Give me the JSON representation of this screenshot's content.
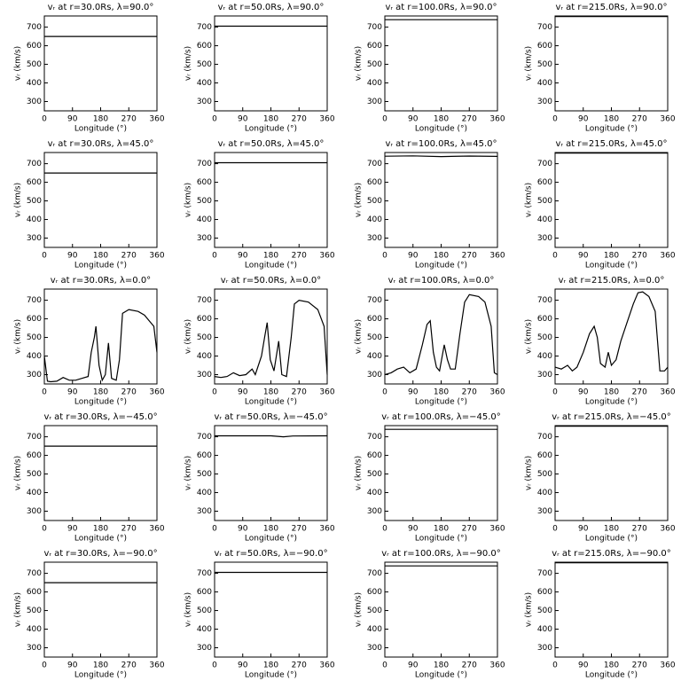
{
  "chart_data": [
    {
      "type": "line",
      "title": "vᵣ at r=30.0Rs, λ=90.0°",
      "xlabel": "Longitude (°)",
      "ylabel": "vᵣ (km/s)",
      "x": [
        0,
        360
      ],
      "values": [
        650,
        650
      ],
      "color": "#000000",
      "xlim": [
        0,
        360
      ],
      "ylim": [
        250,
        760
      ],
      "xticks": [
        0,
        90,
        180,
        270,
        360
      ],
      "yticks": [
        300,
        400,
        500,
        600,
        700
      ]
    },
    {
      "type": "line",
      "title": "vᵣ at r=50.0Rs, λ=90.0°",
      "xlabel": "Longitude (°)",
      "ylabel": "vᵣ (km/s)",
      "x": [
        0,
        360
      ],
      "values": [
        705,
        705
      ],
      "color": "#000000",
      "xlim": [
        0,
        360
      ],
      "ylim": [
        250,
        760
      ],
      "xticks": [
        0,
        90,
        180,
        270,
        360
      ],
      "yticks": [
        300,
        400,
        500,
        600,
        700
      ]
    },
    {
      "type": "line",
      "title": "vᵣ at r=100.0Rs, λ=90.0°",
      "xlabel": "Longitude (°)",
      "ylabel": "vᵣ (km/s)",
      "x": [
        0,
        360
      ],
      "values": [
        740,
        740
      ],
      "color": "#000000",
      "xlim": [
        0,
        360
      ],
      "ylim": [
        250,
        760
      ],
      "xticks": [
        0,
        90,
        180,
        270,
        360
      ],
      "yticks": [
        300,
        400,
        500,
        600,
        700
      ]
    },
    {
      "type": "line",
      "title": "vᵣ at r=215.0Rs, λ=90.0°",
      "xlabel": "Longitude (°)",
      "ylabel": "vᵣ (km/s)",
      "x": [
        0,
        360
      ],
      "values": [
        757,
        757
      ],
      "color": "#000000",
      "xlim": [
        0,
        360
      ],
      "ylim": [
        250,
        760
      ],
      "xticks": [
        0,
        90,
        180,
        270,
        360
      ],
      "yticks": [
        300,
        400,
        500,
        600,
        700
      ]
    },
    {
      "type": "line",
      "title": "vᵣ at r=30.0Rs, λ=45.0°",
      "xlabel": "Longitude (°)",
      "ylabel": "vᵣ (km/s)",
      "x": [
        0,
        360
      ],
      "values": [
        650,
        650
      ],
      "color": "#000000",
      "xlim": [
        0,
        360
      ],
      "ylim": [
        250,
        760
      ],
      "xticks": [
        0,
        90,
        180,
        270,
        360
      ],
      "yticks": [
        300,
        400,
        500,
        600,
        700
      ]
    },
    {
      "type": "line",
      "title": "vᵣ at r=50.0Rs, λ=45.0°",
      "xlabel": "Longitude (°)",
      "ylabel": "vᵣ (km/s)",
      "x": [
        0,
        360
      ],
      "values": [
        705,
        705
      ],
      "color": "#000000",
      "xlim": [
        0,
        360
      ],
      "ylim": [
        250,
        760
      ],
      "xticks": [
        0,
        90,
        180,
        270,
        360
      ],
      "yticks": [
        300,
        400,
        500,
        600,
        700
      ]
    },
    {
      "type": "line",
      "title": "vᵣ at r=100.0Rs, λ=45.0°",
      "xlabel": "Longitude (°)",
      "ylabel": "vᵣ (km/s)",
      "x": [
        0,
        90,
        180,
        270,
        360
      ],
      "values": [
        740,
        742,
        738,
        741,
        739
      ],
      "color": "#000000",
      "xlim": [
        0,
        360
      ],
      "ylim": [
        250,
        760
      ],
      "xticks": [
        0,
        90,
        180,
        270,
        360
      ],
      "yticks": [
        300,
        400,
        500,
        600,
        700
      ]
    },
    {
      "type": "line",
      "title": "vᵣ at r=215.0Rs, λ=45.0°",
      "xlabel": "Longitude (°)",
      "ylabel": "vᵣ (km/s)",
      "x": [
        0,
        360
      ],
      "values": [
        757,
        757
      ],
      "color": "#000000",
      "xlim": [
        0,
        360
      ],
      "ylim": [
        250,
        760
      ],
      "xticks": [
        0,
        90,
        180,
        270,
        360
      ],
      "yticks": [
        300,
        400,
        500,
        600,
        700
      ]
    },
    {
      "type": "line",
      "title": "vᵣ at r=30.0Rs, λ=0.0°",
      "xlabel": "Longitude (°)",
      "ylabel": "vᵣ (km/s)",
      "x": [
        0,
        10,
        20,
        40,
        60,
        80,
        100,
        120,
        140,
        150,
        160,
        165,
        175,
        185,
        195,
        205,
        215,
        230,
        240,
        250,
        270,
        300,
        320,
        340,
        350,
        360
      ],
      "values": [
        400,
        265,
        262,
        265,
        285,
        270,
        270,
        280,
        290,
        420,
        500,
        560,
        350,
        270,
        300,
        470,
        280,
        270,
        380,
        630,
        650,
        640,
        620,
        580,
        560,
        420
      ],
      "color": "#000000",
      "xlim": [
        0,
        360
      ],
      "ylim": [
        250,
        760
      ],
      "xticks": [
        0,
        90,
        180,
        270,
        360
      ],
      "yticks": [
        300,
        400,
        500,
        600,
        700
      ]
    },
    {
      "type": "line",
      "title": "vᵣ at r=50.0Rs, λ=0.0°",
      "xlabel": "Longitude (°)",
      "ylabel": "vᵣ (km/s)",
      "x": [
        0,
        20,
        40,
        60,
        80,
        100,
        120,
        130,
        150,
        160,
        168,
        178,
        190,
        205,
        215,
        230,
        245,
        255,
        270,
        300,
        330,
        350,
        360
      ],
      "values": [
        290,
        285,
        290,
        310,
        295,
        300,
        330,
        300,
        400,
        500,
        580,
        380,
        320,
        480,
        300,
        290,
        500,
        680,
        700,
        690,
        650,
        560,
        300
      ],
      "color": "#000000",
      "xlim": [
        0,
        360
      ],
      "ylim": [
        250,
        760
      ],
      "xticks": [
        0,
        90,
        180,
        270,
        360
      ],
      "yticks": [
        300,
        400,
        500,
        600,
        700
      ]
    },
    {
      "type": "line",
      "title": "vᵣ at r=100.0Rs, λ=0.0°",
      "xlabel": "Longitude (°)",
      "ylabel": "vᵣ (km/s)",
      "x": [
        0,
        20,
        40,
        60,
        80,
        100,
        120,
        135,
        145,
        155,
        165,
        175,
        190,
        200,
        210,
        225,
        240,
        255,
        270,
        300,
        320,
        340,
        350,
        360
      ],
      "values": [
        300,
        310,
        330,
        340,
        310,
        330,
        460,
        570,
        590,
        420,
        340,
        320,
        460,
        380,
        330,
        330,
        520,
        690,
        730,
        720,
        690,
        560,
        310,
        300
      ],
      "color": "#000000",
      "xlim": [
        0,
        360
      ],
      "ylim": [
        250,
        760
      ],
      "xticks": [
        0,
        90,
        180,
        270,
        360
      ],
      "yticks": [
        300,
        400,
        500,
        600,
        700
      ]
    },
    {
      "type": "line",
      "title": "vᵣ at r=215.0Rs, λ=0.0°",
      "xlabel": "Longitude (°)",
      "ylabel": "vᵣ (km/s)",
      "x": [
        0,
        20,
        40,
        55,
        70,
        90,
        110,
        125,
        135,
        145,
        160,
        170,
        180,
        195,
        210,
        230,
        250,
        265,
        280,
        300,
        320,
        335,
        350,
        360
      ],
      "values": [
        340,
        330,
        350,
        320,
        340,
        420,
        520,
        560,
        500,
        360,
        340,
        420,
        350,
        380,
        480,
        580,
        680,
        740,
        745,
        720,
        640,
        320,
        320,
        340
      ],
      "color": "#000000",
      "xlim": [
        0,
        360
      ],
      "ylim": [
        250,
        760
      ],
      "xticks": [
        0,
        90,
        180,
        270,
        360
      ],
      "yticks": [
        300,
        400,
        500,
        600,
        700
      ]
    },
    {
      "type": "line",
      "title": "vᵣ at r=30.0Rs, λ=−45.0°",
      "xlabel": "Longitude (°)",
      "ylabel": "vᵣ (km/s)",
      "x": [
        0,
        360
      ],
      "values": [
        650,
        650
      ],
      "color": "#000000",
      "xlim": [
        0,
        360
      ],
      "ylim": [
        250,
        760
      ],
      "xticks": [
        0,
        90,
        180,
        270,
        360
      ],
      "yticks": [
        300,
        400,
        500,
        600,
        700
      ]
    },
    {
      "type": "line",
      "title": "vᵣ at r=50.0Rs, λ=−45.0°",
      "xlabel": "Longitude (°)",
      "ylabel": "vᵣ (km/s)",
      "x": [
        0,
        180,
        220,
        250,
        360
      ],
      "values": [
        705,
        705,
        700,
        704,
        705
      ],
      "color": "#000000",
      "xlim": [
        0,
        360
      ],
      "ylim": [
        250,
        760
      ],
      "xticks": [
        0,
        90,
        180,
        270,
        360
      ],
      "yticks": [
        300,
        400,
        500,
        600,
        700
      ]
    },
    {
      "type": "line",
      "title": "vᵣ at r=100.0Rs, λ=−45.0°",
      "xlabel": "Longitude (°)",
      "ylabel": "vᵣ (km/s)",
      "x": [
        0,
        360
      ],
      "values": [
        740,
        740
      ],
      "color": "#000000",
      "xlim": [
        0,
        360
      ],
      "ylim": [
        250,
        760
      ],
      "xticks": [
        0,
        90,
        180,
        270,
        360
      ],
      "yticks": [
        300,
        400,
        500,
        600,
        700
      ]
    },
    {
      "type": "line",
      "title": "vᵣ at r=215.0Rs, λ=−45.0°",
      "xlabel": "Longitude (°)",
      "ylabel": "vᵣ (km/s)",
      "x": [
        0,
        360
      ],
      "values": [
        757,
        757
      ],
      "color": "#000000",
      "xlim": [
        0,
        360
      ],
      "ylim": [
        250,
        760
      ],
      "xticks": [
        0,
        90,
        180,
        270,
        360
      ],
      "yticks": [
        300,
        400,
        500,
        600,
        700
      ]
    },
    {
      "type": "line",
      "title": "vᵣ at r=30.0Rs, λ=−90.0°",
      "xlabel": "Longitude (°)",
      "ylabel": "vᵣ (km/s)",
      "x": [
        0,
        360
      ],
      "values": [
        650,
        650
      ],
      "color": "#000000",
      "xlim": [
        0,
        360
      ],
      "ylim": [
        250,
        760
      ],
      "xticks": [
        0,
        90,
        180,
        270,
        360
      ],
      "yticks": [
        300,
        400,
        500,
        600,
        700
      ]
    },
    {
      "type": "line",
      "title": "vᵣ at r=50.0Rs, λ=−90.0°",
      "xlabel": "Longitude (°)",
      "ylabel": "vᵣ (km/s)",
      "x": [
        0,
        360
      ],
      "values": [
        705,
        705
      ],
      "color": "#000000",
      "xlim": [
        0,
        360
      ],
      "ylim": [
        250,
        760
      ],
      "xticks": [
        0,
        90,
        180,
        270,
        360
      ],
      "yticks": [
        300,
        400,
        500,
        600,
        700
      ]
    },
    {
      "type": "line",
      "title": "vᵣ at r=100.0Rs, λ=−90.0°",
      "xlabel": "Longitude (°)",
      "ylabel": "vᵣ (km/s)",
      "x": [
        0,
        360
      ],
      "values": [
        740,
        740
      ],
      "color": "#000000",
      "xlim": [
        0,
        360
      ],
      "ylim": [
        250,
        760
      ],
      "xticks": [
        0,
        90,
        180,
        270,
        360
      ],
      "yticks": [
        300,
        400,
        500,
        600,
        700
      ]
    },
    {
      "type": "line",
      "title": "vᵣ at r=215.0Rs, λ=−90.0°",
      "xlabel": "Longitude (°)",
      "ylabel": "vᵣ (km/s)",
      "x": [
        0,
        360
      ],
      "values": [
        757,
        757
      ],
      "color": "#000000",
      "xlim": [
        0,
        360
      ],
      "ylim": [
        250,
        760
      ],
      "xticks": [
        0,
        90,
        180,
        270,
        360
      ],
      "yticks": [
        300,
        400,
        500,
        600,
        700
      ]
    }
  ]
}
